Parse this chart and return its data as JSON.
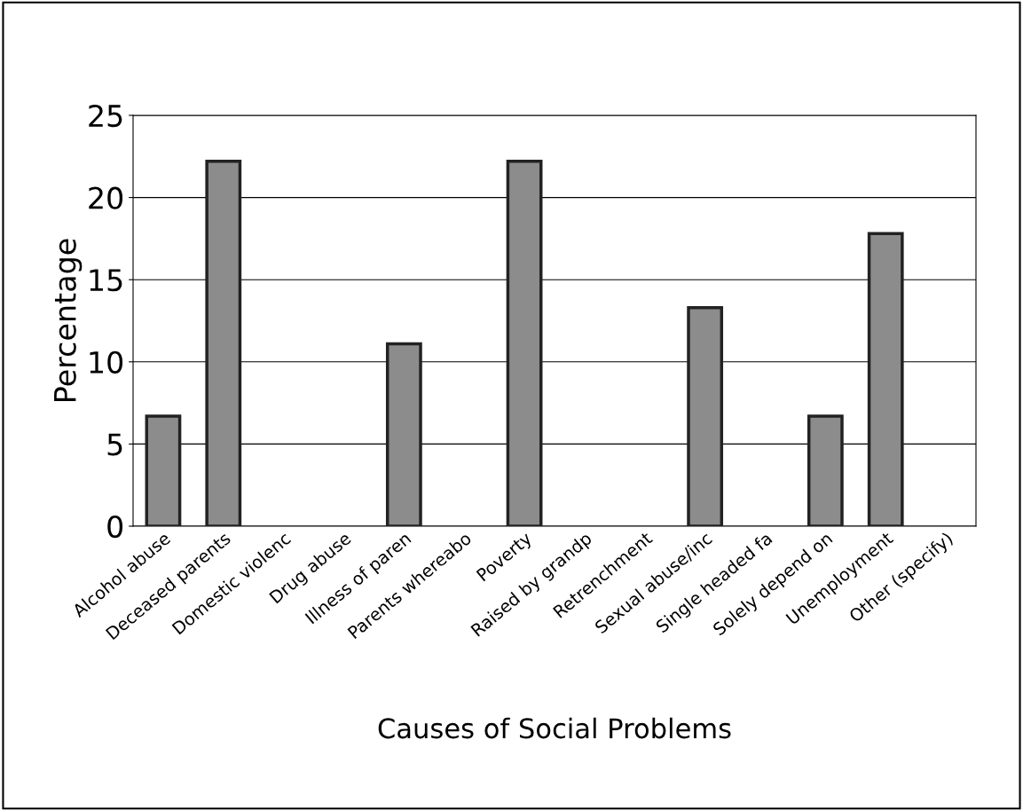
{
  "chart_data": {
    "type": "bar",
    "xlabel": "Causes of Social Problems",
    "ylabel": "Percentage",
    "categories": [
      "Alcohol abuse",
      "Deceased parents",
      "Domestic violenc",
      "Drug abuse",
      "Illness of paren",
      "Parents whereabo",
      "Poverty",
      "Raised by grandp",
      "Retrenchment",
      "Sexual abuse/inc",
      "Single headed fa",
      "Solely depend on",
      "Unemployment",
      "Other (specify)"
    ],
    "values": [
      6.7,
      22.2,
      0,
      0,
      11.1,
      0,
      22.2,
      0,
      0,
      13.3,
      0,
      6.7,
      17.8,
      0
    ],
    "color": "#8c8c8c",
    "ylim": [
      0,
      25
    ],
    "yticks": [
      0,
      5,
      10,
      15,
      20,
      25
    ],
    "grid": "y"
  }
}
